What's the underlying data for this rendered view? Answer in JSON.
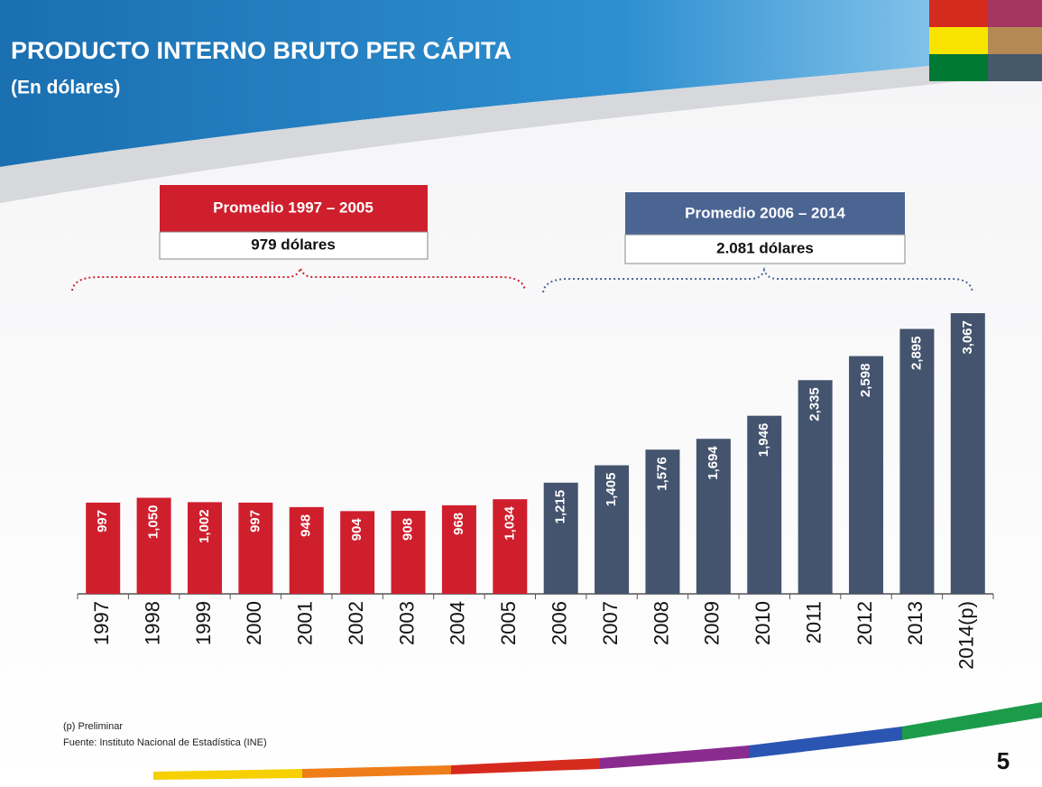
{
  "chart_data": {
    "type": "bar",
    "title": "PRODUCTO INTERNO BRUTO PER CÁPITA",
    "subtitle": "(En dólares)",
    "categories": [
      "1997",
      "1998",
      "1999",
      "2000",
      "2001",
      "2002",
      "2003",
      "2004",
      "2005",
      "2006",
      "2007",
      "2008",
      "2009",
      "2010",
      "2011",
      "2012",
      "2013",
      "2014(p)"
    ],
    "values": [
      997,
      1050,
      1002,
      997,
      948,
      904,
      908,
      968,
      1034,
      1215,
      1405,
      1576,
      1694,
      1946,
      2335,
      2598,
      2895,
      3067
    ],
    "value_labels": [
      "997",
      "1,050",
      "1,002",
      "997",
      "948",
      "904",
      "908",
      "968",
      "1,034",
      "1,215",
      "1,405",
      "1,576",
      "1,694",
      "1,946",
      "2,335",
      "2,598",
      "2,895",
      "3,067"
    ],
    "colors": [
      "#cf1f2d",
      "#cf1f2d",
      "#cf1f2d",
      "#cf1f2d",
      "#cf1f2d",
      "#cf1f2d",
      "#cf1f2d",
      "#cf1f2d",
      "#cf1f2d",
      "#44546e",
      "#44546e",
      "#44546e",
      "#44546e",
      "#44546e",
      "#44546e",
      "#44546e",
      "#44546e",
      "#44546e"
    ],
    "annotations": [
      {
        "label": "Promedio 1997 – 2005",
        "text": "979 dólares",
        "color": "#cf1f2d"
      },
      {
        "label": "Promedio 2006 – 2014",
        "text": "2.081 dólares",
        "color": "#4a6592"
      }
    ],
    "notes": [
      "(p) Preliminar",
      "Fuente: Instituto Nacional de Estadística (INE)"
    ],
    "page_number": 5
  }
}
